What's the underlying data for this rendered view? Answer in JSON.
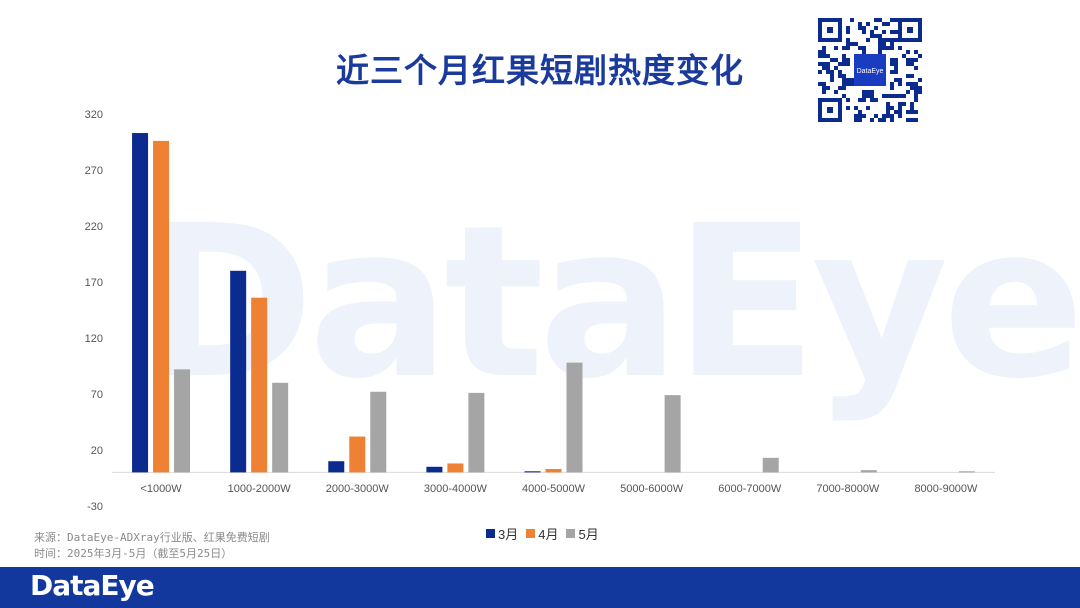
{
  "title": "近三个月红果短剧热度变化",
  "watermark": "DataEye",
  "qr_label": "DataEye",
  "footer_logo": "DataEye",
  "source": {
    "line1": "来源：DataEye-ADXray行业版、红果免费短剧",
    "line2": "时间：2025年3月-5月（截至5月25日）"
  },
  "colors": {
    "title": "#1a3a9c",
    "footer": "#12389e",
    "series": [
      "#0c2b8f",
      "#ee8133",
      "#a5a5a5"
    ]
  },
  "chart_data": {
    "type": "bar",
    "categories": [
      "<1000W",
      "1000-2000W",
      "2000-3000W",
      "3000-4000W",
      "4000-5000W",
      "5000-6000W",
      "6000-7000W",
      "7000-8000W",
      "8000-9000W"
    ],
    "series": [
      {
        "name": "3月",
        "values": [
          303,
          180,
          10,
          5,
          1,
          0,
          0,
          0,
          0
        ]
      },
      {
        "name": "4月",
        "values": [
          296,
          156,
          32,
          8,
          3,
          0,
          0,
          0,
          0
        ]
      },
      {
        "name": "5月",
        "values": [
          92,
          80,
          72,
          71,
          98,
          69,
          13,
          2,
          1
        ]
      }
    ],
    "ylim": [
      -30,
      320
    ],
    "yticks": [
      "320",
      "270",
      "220",
      "170",
      "120",
      "70",
      "20",
      "-30"
    ],
    "ytick_values": [
      320,
      270,
      220,
      170,
      120,
      70,
      20,
      -30
    ],
    "legend_position": "bottom"
  }
}
